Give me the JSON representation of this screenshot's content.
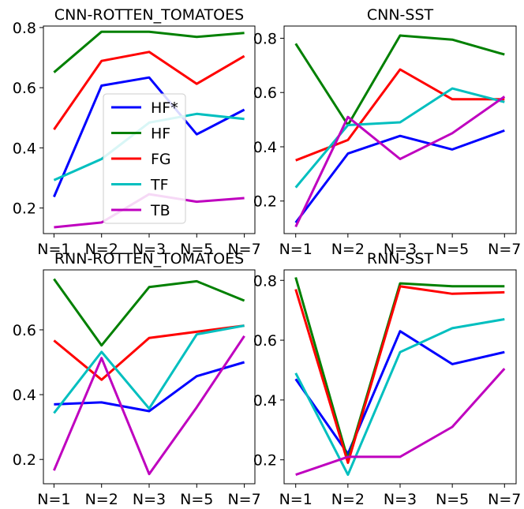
{
  "chart_data": [
    {
      "type": "line",
      "title": "CNN-ROTTEN_TOMATOES",
      "categories": [
        "N=1",
        "N=2",
        "N=3",
        "N=5",
        "N=7"
      ],
      "ylim": [
        0.115,
        0.805
      ],
      "yticks": [
        0.2,
        0.4,
        0.6,
        0.8
      ],
      "series": [
        {
          "name": "HF*",
          "color": "#0000ff",
          "values": [
            0.237,
            0.607,
            0.634,
            0.445,
            0.527
          ]
        },
        {
          "name": "HF",
          "color": "#008000",
          "values": [
            0.651,
            0.786,
            0.786,
            0.769,
            0.782
          ]
        },
        {
          "name": "FG",
          "color": "#ff0000",
          "values": [
            0.461,
            0.689,
            0.719,
            0.613,
            0.705
          ]
        },
        {
          "name": "TF",
          "color": "#00bfbf",
          "values": [
            0.293,
            0.363,
            0.484,
            0.513,
            0.496
          ]
        },
        {
          "name": "TB",
          "color": "#bf00bf",
          "values": [
            0.136,
            0.152,
            0.246,
            0.221,
            0.233
          ]
        }
      ],
      "legend": {
        "position": "center-left",
        "entries": [
          "HF*",
          "HF",
          "FG",
          "TF",
          "TB"
        ]
      }
    },
    {
      "type": "line",
      "title": "CNN-SST",
      "categories": [
        "N=1",
        "N=2",
        "N=3",
        "N=5",
        "N=7"
      ],
      "ylim": [
        0.08,
        0.845
      ],
      "yticks": [
        0.2,
        0.4,
        0.6,
        0.8
      ],
      "series": [
        {
          "name": "HF*",
          "color": "#0000ff",
          "values": [
            0.12,
            0.375,
            0.44,
            0.39,
            0.46
          ]
        },
        {
          "name": "HF",
          "color": "#008000",
          "values": [
            0.78,
            0.48,
            0.81,
            0.795,
            0.74
          ]
        },
        {
          "name": "FG",
          "color": "#ff0000",
          "values": [
            0.35,
            0.425,
            0.685,
            0.575,
            0.575
          ]
        },
        {
          "name": "TF",
          "color": "#00bfbf",
          "values": [
            0.25,
            0.48,
            0.49,
            0.615,
            0.565
          ]
        },
        {
          "name": "TB",
          "color": "#bf00bf",
          "values": [
            0.105,
            0.51,
            0.355,
            0.45,
            0.585
          ]
        }
      ]
    },
    {
      "type": "line",
      "title": "RNN-ROTTEN_TOMATOES",
      "categories": [
        "N=1",
        "N=2",
        "N=3",
        "N=5",
        "N=7"
      ],
      "ylim": [
        0.125,
        0.785
      ],
      "yticks": [
        0.2,
        0.4,
        0.6
      ],
      "series": [
        {
          "name": "HF*",
          "color": "#0000ff",
          "values": [
            0.37,
            0.376,
            0.349,
            0.457,
            0.5
          ]
        },
        {
          "name": "HF",
          "color": "#008000",
          "values": [
            0.757,
            0.552,
            0.732,
            0.75,
            0.69
          ]
        },
        {
          "name": "FG",
          "color": "#ff0000",
          "values": [
            0.567,
            0.446,
            0.575,
            0.594,
            0.613
          ]
        },
        {
          "name": "TF",
          "color": "#00bfbf",
          "values": [
            0.343,
            0.532,
            0.357,
            0.586,
            0.613
          ]
        },
        {
          "name": "TB",
          "color": "#bf00bf",
          "values": [
            0.166,
            0.513,
            0.155,
            0.361,
            0.581
          ]
        }
      ]
    },
    {
      "type": "line",
      "title": "RNN-SST",
      "categories": [
        "N=1",
        "N=2",
        "N=3",
        "N=5",
        "N=7"
      ],
      "ylim": [
        0.12,
        0.835
      ],
      "yticks": [
        0.2,
        0.4,
        0.6,
        0.8
      ],
      "series": [
        {
          "name": "HF*",
          "color": "#0000ff",
          "values": [
            0.47,
            0.22,
            0.63,
            0.52,
            0.56
          ]
        },
        {
          "name": "HF",
          "color": "#008000",
          "values": [
            0.81,
            0.2,
            0.79,
            0.78,
            0.78
          ]
        },
        {
          "name": "FG",
          "color": "#ff0000",
          "values": [
            0.77,
            0.19,
            0.78,
            0.755,
            0.76
          ]
        },
        {
          "name": "TF",
          "color": "#00bfbf",
          "values": [
            0.49,
            0.15,
            0.56,
            0.64,
            0.67
          ]
        },
        {
          "name": "TB",
          "color": "#bf00bf",
          "values": [
            0.15,
            0.21,
            0.21,
            0.31,
            0.505
          ]
        }
      ]
    }
  ]
}
